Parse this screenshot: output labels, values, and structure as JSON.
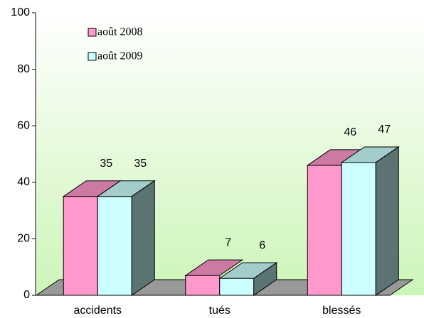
{
  "chart_data": {
    "type": "bar3d",
    "categories": [
      "accidents",
      "tués",
      "blessés"
    ],
    "series": [
      {
        "name": "août 2008",
        "color": "#ff99cc",
        "values": [
          35,
          7,
          46
        ]
      },
      {
        "name": "août 2009",
        "color": "#ccffff",
        "values": [
          35,
          6,
          47
        ]
      }
    ],
    "ylim": [
      0,
      100
    ],
    "yticks": [
      0,
      20,
      40,
      60,
      80,
      100
    ],
    "legend": "upper-left"
  }
}
